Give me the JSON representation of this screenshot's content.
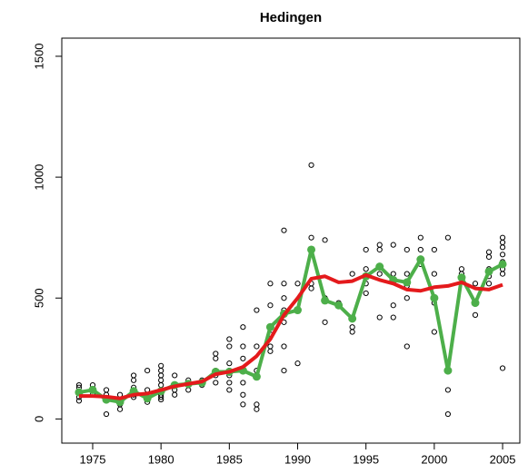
{
  "chart_data": {
    "type": "scatter",
    "title": "Hedingen",
    "xlim": [
      1972.74,
      2006.26
    ],
    "ylim": [
      -100,
      1575
    ],
    "xticks": [
      1975,
      1980,
      1985,
      1990,
      1995,
      2000,
      2005
    ],
    "yticks": [
      0,
      500,
      1000,
      1500
    ],
    "series": [
      {
        "type": "scatter",
        "color": "#000000",
        "x": [
          1974,
          1974,
          1974,
          1974,
          1974,
          1975,
          1975,
          1975,
          1976,
          1976,
          1976,
          1976,
          1977,
          1977,
          1977,
          1977,
          1978,
          1978,
          1978,
          1978,
          1978,
          1978,
          1979,
          1979,
          1979,
          1979,
          1980,
          1980,
          1980,
          1980,
          1980,
          1980,
          1980,
          1980,
          1980,
          1981,
          1981,
          1981,
          1981,
          1982,
          1982,
          1982,
          1983,
          1983,
          1983,
          1984,
          1984,
          1984,
          1984,
          1984,
          1985,
          1985,
          1985,
          1985,
          1985,
          1985,
          1985,
          1986,
          1986,
          1986,
          1986,
          1986,
          1986,
          1986,
          1987,
          1987,
          1987,
          1987,
          1987,
          1988,
          1988,
          1988,
          1988,
          1988,
          1988,
          1989,
          1989,
          1989,
          1989,
          1989,
          1989,
          1989,
          1990,
          1990,
          1990,
          1991,
          1991,
          1991,
          1991,
          1991,
          1992,
          1992,
          1992,
          1993,
          1993,
          1994,
          1994,
          1994,
          1994,
          1995,
          1995,
          1995,
          1995,
          1996,
          1996,
          1996,
          1996,
          1997,
          1997,
          1997,
          1997,
          1997,
          1998,
          1998,
          1998,
          1998,
          1998,
          1999,
          1999,
          1999,
          2000,
          2000,
          2000,
          2000,
          2001,
          2001,
          2001,
          2002,
          2002,
          2002,
          2003,
          2003,
          2004,
          2004,
          2004,
          2004,
          2004,
          2005,
          2005,
          2005,
          2005,
          2005,
          2005,
          2005,
          2005
        ],
        "values": [
          140,
          130,
          110,
          90,
          75,
          140,
          120,
          100,
          120,
          100,
          80,
          20,
          100,
          80,
          60,
          40,
          180,
          160,
          130,
          110,
          100,
          90,
          200,
          120,
          80,
          70,
          220,
          200,
          180,
          160,
          140,
          120,
          100,
          90,
          80,
          180,
          140,
          120,
          100,
          160,
          140,
          120,
          160,
          150,
          140,
          270,
          250,
          200,
          180,
          150,
          330,
          300,
          230,
          200,
          180,
          150,
          120,
          380,
          300,
          250,
          200,
          150,
          100,
          60,
          450,
          300,
          200,
          60,
          40,
          560,
          470,
          380,
          350,
          300,
          280,
          780,
          560,
          500,
          450,
          400,
          300,
          200,
          560,
          450,
          230,
          1050,
          750,
          700,
          560,
          540,
          740,
          500,
          400,
          470,
          480,
          600,
          420,
          380,
          360,
          700,
          620,
          560,
          520,
          720,
          700,
          600,
          420,
          720,
          600,
          570,
          470,
          420,
          700,
          600,
          550,
          500,
          300,
          750,
          700,
          640,
          700,
          600,
          480,
          360,
          750,
          120,
          20,
          620,
          600,
          580,
          560,
          430,
          690,
          670,
          620,
          590,
          560,
          750,
          730,
          710,
          680,
          650,
          620,
          600,
          210
        ]
      },
      {
        "type": "line",
        "color": "#4daf4a",
        "points": true,
        "x": [
          1974,
          1975,
          1976,
          1977,
          1978,
          1979,
          1980,
          1981,
          1982,
          1983,
          1984,
          1985,
          1986,
          1987,
          1988,
          1989,
          1990,
          1991,
          1992,
          1993,
          1994,
          1995,
          1996,
          1997,
          1998,
          1999,
          2000,
          2001,
          2002,
          2003,
          2004,
          2005
        ],
        "values": [
          110,
          120,
          80,
          70,
          115,
          85,
          115,
          140,
          145,
          150,
          195,
          195,
          200,
          175,
          380,
          435,
          450,
          700,
          490,
          470,
          415,
          590,
          630,
          575,
          565,
          660,
          500,
          200,
          585,
          480,
          610,
          640
        ]
      },
      {
        "type": "line",
        "color": "#e41a1c",
        "points": false,
        "x": [
          1974,
          1975,
          1976,
          1977,
          1978,
          1979,
          1980,
          1981,
          1982,
          1983,
          1984,
          1985,
          1986,
          1987,
          1988,
          1989,
          1990,
          1991,
          1992,
          1993,
          1994,
          1995,
          1996,
          1997,
          1998,
          1999,
          2000,
          2001,
          2002,
          2003,
          2004,
          2005
        ],
        "values": [
          95,
          95,
          92,
          85,
          100,
          105,
          120,
          135,
          145,
          155,
          185,
          195,
          215,
          260,
          330,
          430,
          500,
          580,
          590,
          565,
          570,
          595,
          575,
          560,
          535,
          530,
          545,
          550,
          565,
          540,
          535,
          555
        ]
      }
    ]
  }
}
